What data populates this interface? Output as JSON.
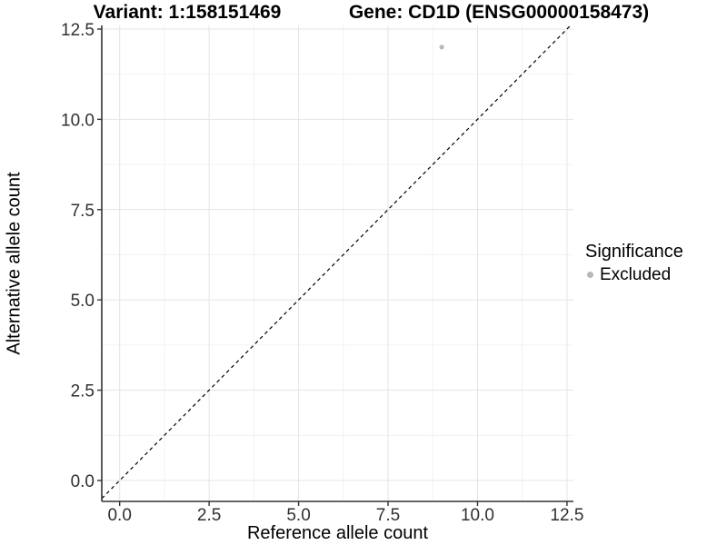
{
  "chart_data": {
    "type": "scatter",
    "title_left": "Variant: 1:158151469",
    "title_right": "Gene: CD1D (ENSG00000158473)",
    "xlabel": "Reference allele count",
    "ylabel": "Alternative allele count",
    "xlim": [
      -0.5,
      12.68
    ],
    "ylim": [
      -0.58,
      12.6
    ],
    "x_ticks": {
      "values": [
        0,
        2.5,
        5,
        7.5,
        10,
        12.5
      ],
      "labels": [
        "0.0",
        "2.5",
        "5.0",
        "7.5",
        "10.0",
        "12.5"
      ]
    },
    "y_ticks": {
      "values": [
        0,
        2.5,
        5,
        7.5,
        10,
        12.5
      ],
      "labels": [
        "0.0",
        "2.5",
        "5.0",
        "7.5",
        "10.0",
        "12.5"
      ]
    },
    "minor_ticks": [
      1.25,
      3.75,
      6.25,
      8.75,
      11.25
    ],
    "grid": true,
    "points": [
      {
        "x": 9,
        "y": 12,
        "series": "Excluded"
      }
    ],
    "reference_line": {
      "kind": "identity",
      "slope": 1,
      "intercept": 0,
      "style": "dashed",
      "color": "#000000"
    },
    "legend": {
      "position": "right",
      "title": "Significance",
      "items": [
        {
          "label": "Excluded",
          "color": "#b8b8b8"
        }
      ]
    },
    "colors": {
      "point": "#b8b8b8",
      "grid_major": "#e4e4e4",
      "grid_minor": "#f2f2f2",
      "axis_line": "#333333",
      "tick_mark": "#333333",
      "tick_label": "#303030",
      "text": "#000000"
    }
  }
}
